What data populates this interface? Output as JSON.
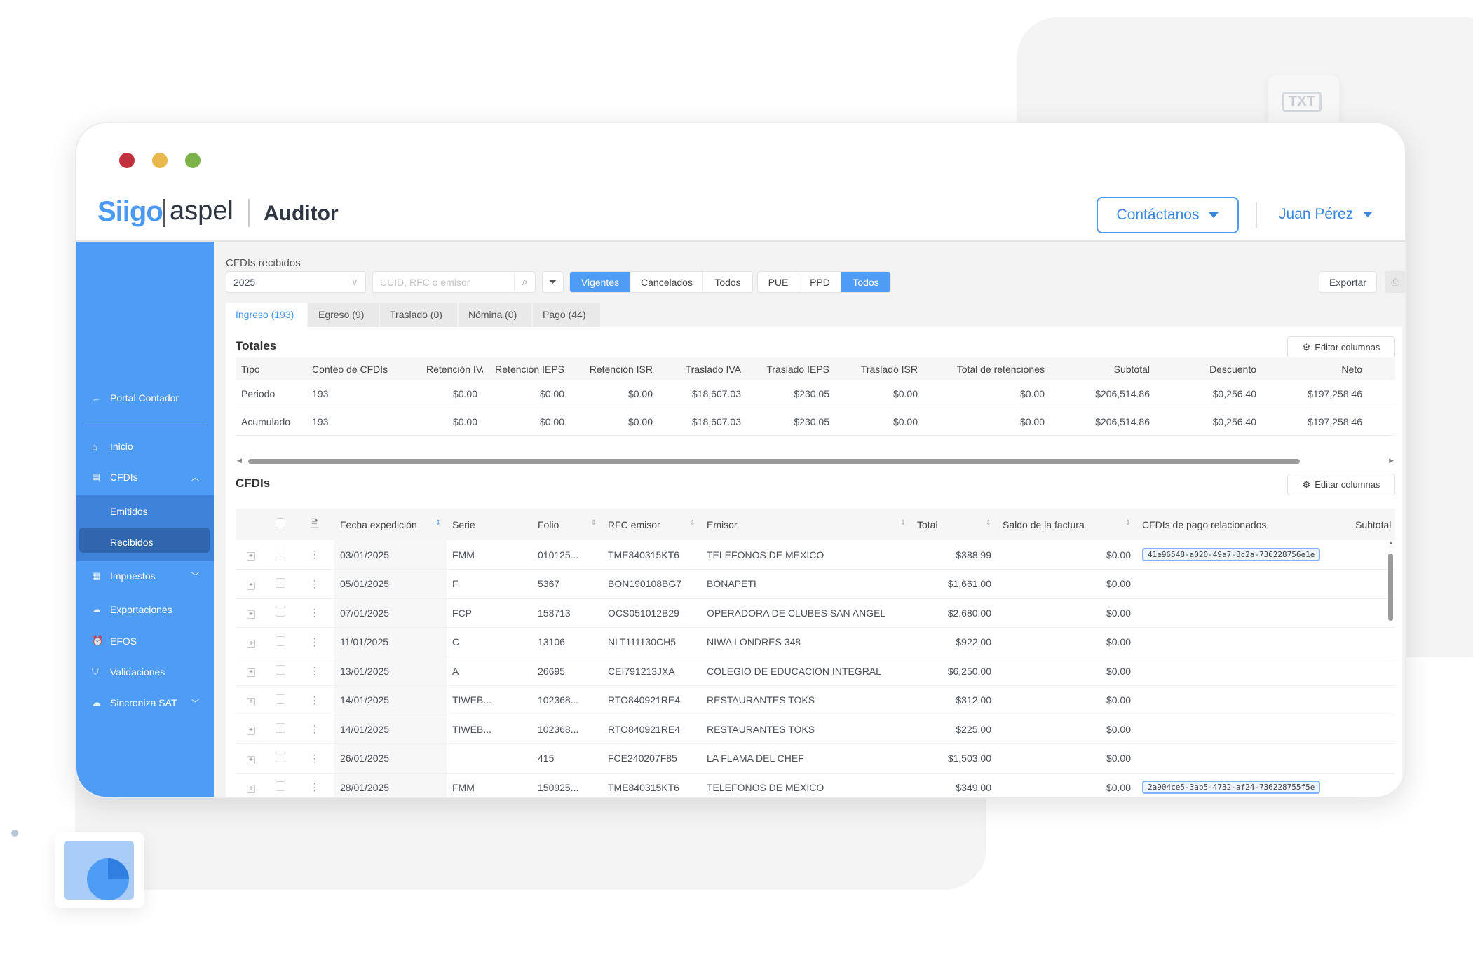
{
  "window": {
    "traffic_lights": [
      "#c0313d",
      "#e8b84a",
      "#7bb34a"
    ]
  },
  "badge": {
    "txt_label": "TXT"
  },
  "header": {
    "logo_siigo": "Siigo",
    "logo_aspel": "aspel",
    "title": "Auditor",
    "contact_label": "Contáctanos",
    "user_name": "Juan Pérez"
  },
  "colors": {
    "accent": "#4f9cf5",
    "sidebar": "#4f9cf5",
    "selected": "#2f66ae"
  },
  "sidebar": {
    "back": "Portal Contador",
    "items": [
      {
        "label": "Inicio",
        "icon": "home-icon"
      },
      {
        "label": "CFDIs",
        "icon": "document-icon"
      },
      {
        "label": "Emitidos"
      },
      {
        "label": "Recibidos"
      },
      {
        "label": "Impuestos",
        "icon": "grid-icon"
      },
      {
        "label": "Exportaciones",
        "icon": "cloud-upload-icon"
      },
      {
        "label": "EFOS",
        "icon": "alarm-icon"
      },
      {
        "label": "Validaciones",
        "icon": "shield-check-icon"
      },
      {
        "label": "Sincroniza SAT",
        "icon": "cloud-sync-icon"
      }
    ]
  },
  "page": {
    "title": "CFDIs recibidos"
  },
  "toolbar": {
    "year": "2025",
    "search_placeholder": "UUID, RFC o emisor",
    "status": [
      "Vigentes",
      "Cancelados",
      "Todos"
    ],
    "status_selected": "Vigentes",
    "method": [
      "PUE",
      "PPD",
      "Todos"
    ],
    "method_selected": "Todos",
    "export": "Exportar"
  },
  "tabs": [
    "Ingreso (193)",
    "Egreso (9)",
    "Traslado (0)",
    "Nómina (0)",
    "Pago (44)"
  ],
  "totales": {
    "title": "Totales",
    "edit_columns": "Editar columnas",
    "headers": [
      "Tipo",
      "Conteo de CFDIs",
      "Retención IVA",
      "Retención IEPS",
      "Retención ISR",
      "Traslado IVA",
      "Traslado IEPS",
      "Traslado ISR",
      "Total de retenciones",
      "Subtotal",
      "Descuento",
      "Neto"
    ],
    "rows": [
      [
        "Periodo",
        "193",
        "$0.00",
        "$0.00",
        "$0.00",
        "$18,607.03",
        "$230.05",
        "$0.00",
        "$0.00",
        "$206,514.86",
        "$9,256.40",
        "$197,258.46"
      ],
      [
        "Acumulado",
        "193",
        "$0.00",
        "$0.00",
        "$0.00",
        "$18,607.03",
        "$230.05",
        "$0.00",
        "$0.00",
        "$206,514.86",
        "$9,256.40",
        "$197,258.46"
      ]
    ]
  },
  "cfdis": {
    "title": "CFDIs",
    "edit_columns": "Editar columnas",
    "headers": [
      "Fecha expedición",
      "Serie",
      "Folio",
      "RFC emisor",
      "Emisor",
      "Total",
      "Saldo de la factura",
      "CFDIs de pago relacionados",
      "Subtotal"
    ],
    "rows": [
      [
        "03/01/2025",
        "FMM",
        "010125...",
        "TME840315KT6",
        "TELEFONOS DE MEXICO",
        "$388.99",
        "$0.00",
        "41e96548-a020-49a7-8c2a-736228756e1e"
      ],
      [
        "05/01/2025",
        "F",
        "5367",
        "BON190108BG7",
        "BONAPETI",
        "$1,661.00",
        "$0.00",
        ""
      ],
      [
        "07/01/2025",
        "FCP",
        "158713",
        "OCS051012B29",
        "OPERADORA DE CLUBES SAN ANGEL",
        "$2,680.00",
        "$0.00",
        ""
      ],
      [
        "11/01/2025",
        "C",
        "13106",
        "NLT111130CH5",
        "NIWA LONDRES 348",
        "$922.00",
        "$0.00",
        ""
      ],
      [
        "13/01/2025",
        "A",
        "26695",
        "CEI791213JXA",
        "COLEGIO DE EDUCACION INTEGRAL",
        "$6,250.00",
        "$0.00",
        ""
      ],
      [
        "14/01/2025",
        "TIWEB...",
        "102368...",
        "RTO840921RE4",
        "RESTAURANTES TOKS",
        "$312.00",
        "$0.00",
        ""
      ],
      [
        "14/01/2025",
        "TIWEB...",
        "102368...",
        "RTO840921RE4",
        "RESTAURANTES TOKS",
        "$225.00",
        "$0.00",
        ""
      ],
      [
        "26/01/2025",
        "",
        "415",
        "FCE240207F85",
        "LA FLAMA DEL CHEF",
        "$1,503.00",
        "$0.00",
        ""
      ],
      [
        "28/01/2025",
        "FMM",
        "150925...",
        "TME840315KT6",
        "TELEFONOS DE MEXICO",
        "$349.00",
        "$0.00",
        "2a904ce5-3ab5-4732-af24-736228755f5e"
      ]
    ]
  }
}
